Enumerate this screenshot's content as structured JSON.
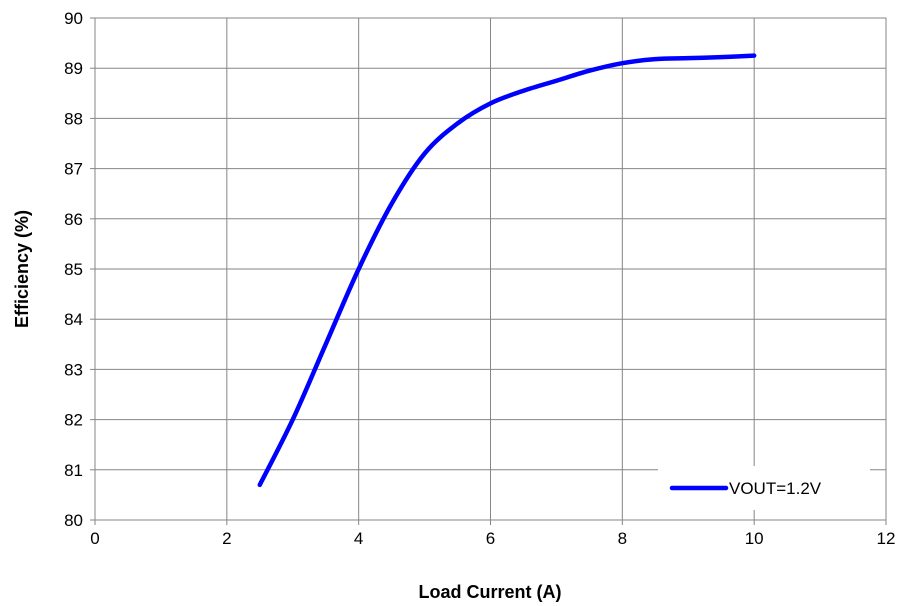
{
  "chart_data": {
    "type": "line",
    "xlabel": "Load Current (A)",
    "ylabel": "Efficiency (%)",
    "xlim": [
      0,
      12
    ],
    "ylim": [
      80,
      90
    ],
    "x_ticks": [
      0,
      2,
      4,
      6,
      8,
      10,
      12
    ],
    "y_ticks": [
      80,
      81,
      82,
      83,
      84,
      85,
      86,
      87,
      88,
      89,
      90
    ],
    "grid": true,
    "legend_position": "bottom-right",
    "series": [
      {
        "name": "VOUT=1.2V",
        "color": "#0000FF",
        "x": [
          2.5,
          3.0,
          3.5,
          4.0,
          4.5,
          5.0,
          5.5,
          6.0,
          6.5,
          7.0,
          7.5,
          8.0,
          8.5,
          9.0,
          9.5,
          10.0
        ],
        "y": [
          80.7,
          82.0,
          83.5,
          85.0,
          86.3,
          87.3,
          87.9,
          88.3,
          88.55,
          88.75,
          88.95,
          89.1,
          89.18,
          89.2,
          89.22,
          89.25
        ]
      }
    ]
  }
}
